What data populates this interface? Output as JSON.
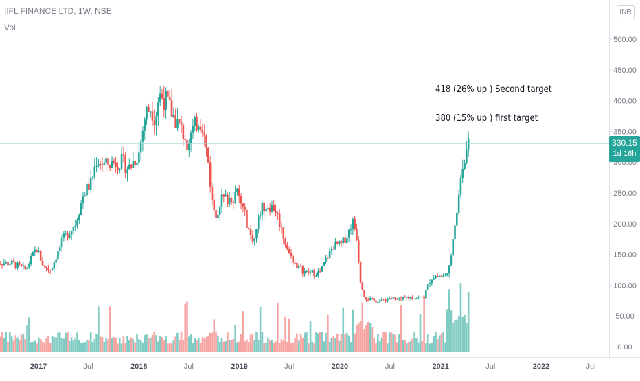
{
  "header": {
    "symbol_title": "IIFL FINANCE LTD, 1W, NSE",
    "volume_label": "Vol",
    "currency_button": "INR"
  },
  "price_tag": {
    "value": "330.15",
    "countdown": "1d 16h"
  },
  "annotations": {
    "second_target": "418 (26% up ) Second target",
    "first_target": "380 (15% up ) first target"
  },
  "colors": {
    "up": "#26a69a",
    "down": "#ef5350",
    "up_volume": "#80cbc4",
    "down_volume": "#f7a5a3",
    "price_line": "#9fd8d2",
    "axis_text": "#787b86",
    "axis_line": "#e0e3eb"
  },
  "chart_data": {
    "type": "candlestick",
    "title": "IIFL FINANCE LTD, 1W, NSE",
    "ylim": [
      -20,
      520
    ],
    "y_ticks": [
      "0.00",
      "50.00",
      "100.00",
      "150.00",
      "200.00",
      "250.00",
      "300.00",
      "350.00",
      "400.00",
      "450.00",
      "500.00"
    ],
    "y_tick_values": [
      0,
      50,
      100,
      150,
      200,
      250,
      300,
      350,
      400,
      450,
      500
    ],
    "x_ticks": [
      "2017",
      "Jul",
      "2018",
      "Jul",
      "2019",
      "Jul",
      "2020",
      "Jul",
      "2021",
      "Jul",
      "2022",
      "Jul"
    ],
    "x_tick_dates": [
      "2017-01-01",
      "2017-07-01",
      "2018-01-01",
      "2018-07-01",
      "2019-01-01",
      "2019-07-01",
      "2020-01-01",
      "2020-07-01",
      "2021-01-01",
      "2021-07-01",
      "2022-01-01",
      "2022-07-01"
    ],
    "x_start": "2016-07-25",
    "bar_interval_days": 7,
    "last_price": 330.15,
    "price_anchors": [
      [
        "2016-07-25",
        138
      ],
      [
        "2016-10-01",
        135
      ],
      [
        "2016-11-15",
        125
      ],
      [
        "2016-12-25",
        160
      ],
      [
        "2017-01-20",
        130
      ],
      [
        "2017-02-15",
        125
      ],
      [
        "2017-04-01",
        175
      ],
      [
        "2017-05-15",
        200
      ],
      [
        "2017-06-15",
        250
      ],
      [
        "2017-07-10",
        265
      ],
      [
        "2017-08-01",
        305
      ],
      [
        "2017-09-01",
        295
      ],
      [
        "2017-10-01",
        300
      ],
      [
        "2017-11-01",
        300
      ],
      [
        "2017-11-25",
        290
      ],
      [
        "2018-01-01",
        315
      ],
      [
        "2018-01-25",
        380
      ],
      [
        "2018-02-15",
        390
      ],
      [
        "2018-03-01",
        370
      ],
      [
        "2018-03-15",
        410
      ],
      [
        "2018-04-10",
        400
      ],
      [
        "2018-05-01",
        380
      ],
      [
        "2018-06-01",
        355
      ],
      [
        "2018-06-25",
        335
      ],
      [
        "2018-07-15",
        350
      ],
      [
        "2018-08-05",
        370
      ],
      [
        "2018-08-20",
        360
      ],
      [
        "2018-09-10",
        300
      ],
      [
        "2018-09-25",
        230
      ],
      [
        "2018-10-10",
        215
      ],
      [
        "2018-10-25",
        240
      ],
      [
        "2018-11-20",
        240
      ],
      [
        "2018-12-25",
        250
      ],
      [
        "2019-01-20",
        215
      ],
      [
        "2019-02-10",
        180
      ],
      [
        "2019-02-25",
        175
      ],
      [
        "2019-03-20",
        225
      ],
      [
        "2019-04-15",
        230
      ],
      [
        "2019-05-10",
        225
      ],
      [
        "2019-05-25",
        205
      ],
      [
        "2019-06-10",
        180
      ],
      [
        "2019-07-01",
        150
      ],
      [
        "2019-08-01",
        130
      ],
      [
        "2019-09-01",
        120
      ],
      [
        "2019-09-25",
        120
      ],
      [
        "2019-10-20",
        120
      ],
      [
        "2019-11-15",
        145
      ],
      [
        "2019-12-10",
        165
      ],
      [
        "2020-01-05",
        165
      ],
      [
        "2020-02-01",
        185
      ],
      [
        "2020-02-15",
        205
      ],
      [
        "2020-03-01",
        185
      ],
      [
        "2020-03-15",
        110
      ],
      [
        "2020-04-01",
        80
      ],
      [
        "2020-05-01",
        75
      ],
      [
        "2020-06-01",
        75
      ],
      [
        "2020-07-01",
        80
      ],
      [
        "2020-08-01",
        75
      ],
      [
        "2020-09-01",
        80
      ],
      [
        "2020-10-01",
        80
      ],
      [
        "2020-11-01",
        80
      ],
      [
        "2020-11-25",
        110
      ],
      [
        "2020-12-10",
        115
      ],
      [
        "2021-01-01",
        115
      ],
      [
        "2021-01-20",
        115
      ],
      [
        "2021-02-05",
        145
      ],
      [
        "2021-02-20",
        195
      ],
      [
        "2021-03-05",
        235
      ],
      [
        "2021-03-20",
        295
      ],
      [
        "2021-04-01",
        315
      ],
      [
        "2021-04-15",
        330
      ]
    ],
    "volume_scale_note": "volume pane shares the price axis scale"
  }
}
